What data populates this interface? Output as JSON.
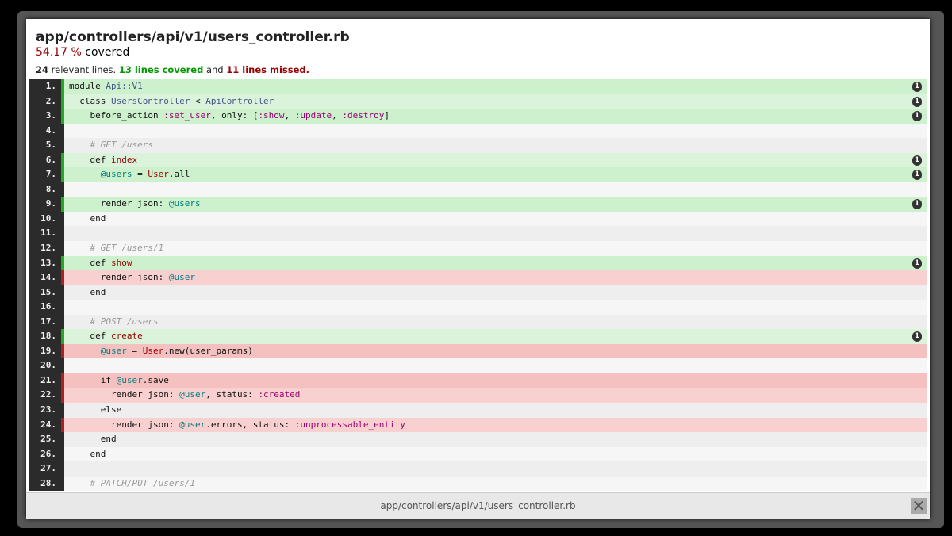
{
  "file": {
    "title": "app/controllers/api/v1/users_controller.rb",
    "percent": "54.17 %",
    "covered_label": " covered",
    "relevant": "24",
    "relevant_label": " relevant lines. ",
    "covered_lines": "13 lines covered",
    "and": " and ",
    "missed_lines": "11 lines missed."
  },
  "footer": {
    "title": "app/controllers/api/v1/users_controller.rb",
    "close_icon": "close-icon"
  },
  "colors": {
    "covered": "#cdf0cd",
    "missed": "#f4c0c0",
    "covered_marker": "#22aa22",
    "missed_marker": "#aa2222"
  },
  "lines": [
    {
      "n": "1.",
      "s": "covered",
      "h": "1",
      "t": [
        [
          "module "
        ],
        [
          "Api::V1",
          "const"
        ]
      ]
    },
    {
      "n": "2.",
      "s": "covered",
      "h": "1",
      "t": [
        [
          "  class "
        ],
        [
          "UsersController",
          "const"
        ],
        [
          " < "
        ],
        [
          "ApiController",
          "const"
        ]
      ]
    },
    {
      "n": "3.",
      "s": "covered",
      "h": "1",
      "t": [
        [
          "    before_action "
        ],
        [
          ":set_user",
          "sym"
        ],
        [
          ", only: ["
        ],
        [
          ":show",
          "sym"
        ],
        [
          ", "
        ],
        [
          ":update",
          "sym"
        ],
        [
          ", "
        ],
        [
          ":destroy",
          "sym"
        ],
        [
          "]"
        ]
      ]
    },
    {
      "n": "4.",
      "s": "never",
      "t": [
        [
          ""
        ]
      ]
    },
    {
      "n": "5.",
      "s": "never",
      "t": [
        [
          "    "
        ],
        [
          "# GET /users",
          "cmt"
        ]
      ]
    },
    {
      "n": "6.",
      "s": "covered",
      "h": "1",
      "t": [
        [
          "    def "
        ],
        [
          "index",
          "fn"
        ]
      ]
    },
    {
      "n": "7.",
      "s": "covered",
      "h": "1",
      "t": [
        [
          "      "
        ],
        [
          "@users",
          "ivar"
        ],
        [
          " = "
        ],
        [
          "User",
          "fn"
        ],
        [
          ".all"
        ]
      ]
    },
    {
      "n": "8.",
      "s": "never",
      "t": [
        [
          ""
        ]
      ]
    },
    {
      "n": "9.",
      "s": "covered",
      "h": "1",
      "t": [
        [
          "      render json: "
        ],
        [
          "@users",
          "ivar"
        ]
      ]
    },
    {
      "n": "10.",
      "s": "never",
      "t": [
        [
          "    end"
        ]
      ]
    },
    {
      "n": "11.",
      "s": "never",
      "t": [
        [
          ""
        ]
      ]
    },
    {
      "n": "12.",
      "s": "never",
      "t": [
        [
          "    "
        ],
        [
          "# GET /users/1",
          "cmt"
        ]
      ]
    },
    {
      "n": "13.",
      "s": "covered",
      "h": "1",
      "t": [
        [
          "    def "
        ],
        [
          "show",
          "fn"
        ]
      ]
    },
    {
      "n": "14.",
      "s": "missed",
      "t": [
        [
          "      render json: "
        ],
        [
          "@user",
          "ivar"
        ]
      ]
    },
    {
      "n": "15.",
      "s": "never",
      "t": [
        [
          "    end"
        ]
      ]
    },
    {
      "n": "16.",
      "s": "never",
      "t": [
        [
          ""
        ]
      ]
    },
    {
      "n": "17.",
      "s": "never",
      "t": [
        [
          "    "
        ],
        [
          "# POST /users",
          "cmt"
        ]
      ]
    },
    {
      "n": "18.",
      "s": "covered",
      "h": "1",
      "t": [
        [
          "    def "
        ],
        [
          "create",
          "fn"
        ]
      ]
    },
    {
      "n": "19.",
      "s": "missed",
      "t": [
        [
          "      "
        ],
        [
          "@user",
          "ivar"
        ],
        [
          " = "
        ],
        [
          "User",
          "fn"
        ],
        [
          ".new(user_params)"
        ]
      ]
    },
    {
      "n": "20.",
      "s": "never",
      "t": [
        [
          ""
        ]
      ]
    },
    {
      "n": "21.",
      "s": "missed",
      "t": [
        [
          "      if "
        ],
        [
          "@user",
          "ivar"
        ],
        [
          ".save"
        ]
      ]
    },
    {
      "n": "22.",
      "s": "missed",
      "t": [
        [
          "        render json: "
        ],
        [
          "@user",
          "ivar"
        ],
        [
          ", status: "
        ],
        [
          ":created",
          "sym"
        ]
      ]
    },
    {
      "n": "23.",
      "s": "never",
      "t": [
        [
          "      else"
        ]
      ]
    },
    {
      "n": "24.",
      "s": "missed",
      "t": [
        [
          "        render json: "
        ],
        [
          "@user",
          "ivar"
        ],
        [
          ".errors, status: "
        ],
        [
          ":unprocessable_entity",
          "sym"
        ]
      ]
    },
    {
      "n": "25.",
      "s": "never",
      "t": [
        [
          "      end"
        ]
      ]
    },
    {
      "n": "26.",
      "s": "never",
      "t": [
        [
          "    end"
        ]
      ]
    },
    {
      "n": "27.",
      "s": "never",
      "t": [
        [
          ""
        ]
      ]
    },
    {
      "n": "28.",
      "s": "never",
      "t": [
        [
          "    "
        ],
        [
          "# PATCH/PUT /users/1",
          "cmt"
        ]
      ]
    }
  ]
}
